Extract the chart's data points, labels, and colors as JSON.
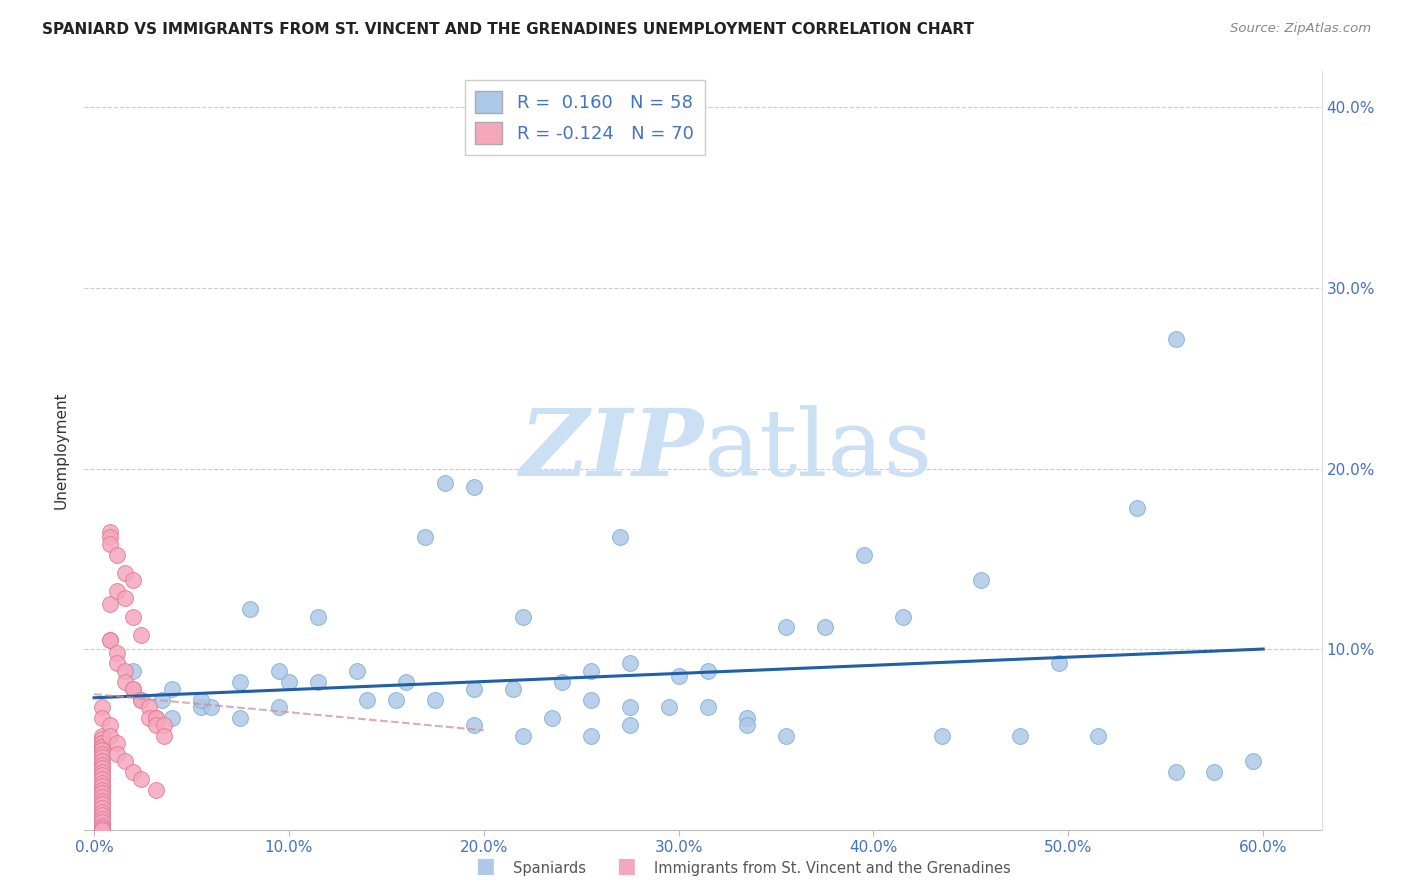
{
  "title": "SPANIARD VS IMMIGRANTS FROM ST. VINCENT AND THE GRENADINES UNEMPLOYMENT CORRELATION CHART",
  "source": "Source: ZipAtlas.com",
  "ylabel": "Unemployment",
  "ylim": [
    0.0,
    0.42
  ],
  "xlim": [
    -0.005,
    0.63
  ],
  "blue_R": 0.16,
  "blue_N": 58,
  "pink_R": -0.124,
  "pink_N": 70,
  "blue_color": "#aec8e8",
  "blue_edge": "#7aafd4",
  "pink_color": "#f5a8bc",
  "pink_edge": "#e07898",
  "trend_blue": "#2060a8",
  "trend_pink": "#d09098",
  "watermark_color": "#cce0f5",
  "legend_label_blue": "Spaniards",
  "legend_label_pink": "Immigrants from St. Vincent and the Grenadines",
  "blue_scatter_x": [
    0.3,
    0.18,
    0.195,
    0.17,
    0.27,
    0.08,
    0.22,
    0.135,
    0.255,
    0.1,
    0.115,
    0.16,
    0.075,
    0.24,
    0.215,
    0.195,
    0.175,
    0.14,
    0.155,
    0.255,
    0.275,
    0.315,
    0.095,
    0.295,
    0.335,
    0.235,
    0.275,
    0.195,
    0.22,
    0.255,
    0.395,
    0.355,
    0.375,
    0.415,
    0.335,
    0.435,
    0.455,
    0.315,
    0.495,
    0.275,
    0.515,
    0.475,
    0.355,
    0.04,
    0.055,
    0.06,
    0.04,
    0.075,
    0.035,
    0.055,
    0.555,
    0.575,
    0.595,
    0.535,
    0.555,
    0.02,
    0.095,
    0.115
  ],
  "blue_scatter_y": [
    0.085,
    0.192,
    0.19,
    0.162,
    0.162,
    0.122,
    0.118,
    0.088,
    0.088,
    0.082,
    0.082,
    0.082,
    0.082,
    0.082,
    0.078,
    0.078,
    0.072,
    0.072,
    0.072,
    0.072,
    0.068,
    0.068,
    0.068,
    0.068,
    0.062,
    0.062,
    0.058,
    0.058,
    0.052,
    0.052,
    0.152,
    0.112,
    0.112,
    0.118,
    0.058,
    0.052,
    0.138,
    0.088,
    0.092,
    0.092,
    0.052,
    0.052,
    0.052,
    0.078,
    0.068,
    0.068,
    0.062,
    0.062,
    0.072,
    0.072,
    0.032,
    0.032,
    0.038,
    0.178,
    0.272,
    0.088,
    0.088,
    0.118
  ],
  "pink_scatter_x": [
    0.008,
    0.008,
    0.008,
    0.012,
    0.012,
    0.016,
    0.016,
    0.02,
    0.02,
    0.024,
    0.024,
    0.028,
    0.028,
    0.032,
    0.032,
    0.032,
    0.036,
    0.036,
    0.004,
    0.004,
    0.004,
    0.004,
    0.004,
    0.004,
    0.004,
    0.004,
    0.004,
    0.004,
    0.004,
    0.004,
    0.004,
    0.004,
    0.004,
    0.004,
    0.004,
    0.004,
    0.004,
    0.004,
    0.004,
    0.004,
    0.004,
    0.004,
    0.004,
    0.004,
    0.004,
    0.004,
    0.004,
    0.004,
    0.004,
    0.004,
    0.008,
    0.008,
    0.008,
    0.012,
    0.016,
    0.02,
    0.012,
    0.016,
    0.02,
    0.024,
    0.004,
    0.004,
    0.008,
    0.008,
    0.012,
    0.012,
    0.016,
    0.02,
    0.024,
    0.032
  ],
  "pink_scatter_y": [
    0.125,
    0.105,
    0.105,
    0.098,
    0.092,
    0.088,
    0.082,
    0.078,
    0.078,
    0.072,
    0.072,
    0.068,
    0.062,
    0.062,
    0.062,
    0.058,
    0.058,
    0.052,
    0.052,
    0.05,
    0.048,
    0.048,
    0.046,
    0.046,
    0.044,
    0.044,
    0.042,
    0.04,
    0.038,
    0.036,
    0.034,
    0.032,
    0.03,
    0.028,
    0.026,
    0.024,
    0.022,
    0.02,
    0.018,
    0.016,
    0.014,
    0.012,
    0.01,
    0.008,
    0.006,
    0.004,
    0.002,
    0.001,
    0.0,
    0.0,
    0.165,
    0.162,
    0.158,
    0.152,
    0.142,
    0.138,
    0.132,
    0.128,
    0.118,
    0.108,
    0.068,
    0.062,
    0.058,
    0.052,
    0.048,
    0.042,
    0.038,
    0.032,
    0.028,
    0.022
  ]
}
